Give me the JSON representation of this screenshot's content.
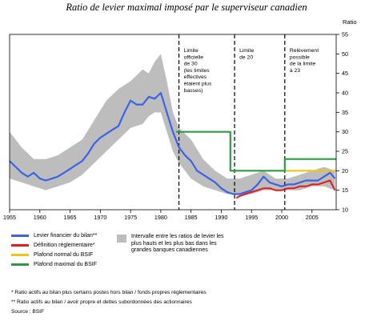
{
  "title": "Ratio de levier maximal imposé par le superviseur canadien",
  "chart_data": {
    "type": "line",
    "ylabel": "Ratio",
    "xlim": [
      1955,
      2009
    ],
    "ylim": [
      10,
      55
    ],
    "x_ticks": [
      "1955",
      "1960",
      "1965",
      "1970",
      "1975",
      "1980",
      "1985",
      "1990",
      "1995",
      "2000",
      "2005"
    ],
    "y_ticks": [
      "10",
      "15",
      "20",
      "25",
      "30",
      "35",
      "40",
      "45",
      "50",
      "55"
    ],
    "grid": false,
    "legend_position": "bottom",
    "series": [
      {
        "name": "Levier financier du bilan**",
        "color": "#3c63e6",
        "points": [
          [
            1955,
            22.5
          ],
          [
            1956,
            21
          ],
          [
            1957,
            19.5
          ],
          [
            1958,
            18.5
          ],
          [
            1959,
            19.5
          ],
          [
            1960,
            18
          ],
          [
            1961,
            17.5
          ],
          [
            1962,
            18
          ],
          [
            1963,
            18.5
          ],
          [
            1964,
            19.5
          ],
          [
            1965,
            20.5
          ],
          [
            1966,
            21.5
          ],
          [
            1967,
            22.5
          ],
          [
            1968,
            24.5
          ],
          [
            1969,
            27
          ],
          [
            1970,
            28.5
          ],
          [
            1971,
            29.5
          ],
          [
            1972,
            30.5
          ],
          [
            1973,
            31.5
          ],
          [
            1974,
            35
          ],
          [
            1975,
            38
          ],
          [
            1976,
            37
          ],
          [
            1977,
            37
          ],
          [
            1978,
            39
          ],
          [
            1979,
            38.5
          ],
          [
            1980,
            40
          ],
          [
            1981,
            35
          ],
          [
            1982,
            30
          ],
          [
            1983,
            26
          ],
          [
            1984,
            24
          ],
          [
            1985,
            22.5
          ],
          [
            1986,
            20
          ],
          [
            1987,
            19
          ],
          [
            1988,
            18
          ],
          [
            1989,
            17
          ],
          [
            1990,
            15.5
          ],
          [
            1991,
            14.5
          ],
          [
            1992,
            14
          ],
          [
            1993,
            14
          ],
          [
            1994,
            14.5
          ],
          [
            1995,
            15
          ],
          [
            1996,
            16.5
          ],
          [
            1997,
            18.5
          ],
          [
            1998,
            17
          ],
          [
            1999,
            16.5
          ],
          [
            2000,
            16
          ],
          [
            2001,
            16.5
          ],
          [
            2002,
            16.5
          ],
          [
            2003,
            17
          ],
          [
            2004,
            17.5
          ],
          [
            2005,
            17.5
          ],
          [
            2006,
            17.5
          ],
          [
            2007,
            18.5
          ],
          [
            2008,
            19.5
          ],
          [
            2008.8,
            18
          ]
        ]
      },
      {
        "name": "Définition réglementaire*",
        "color": "#e01c1c",
        "points": [
          [
            1992.5,
            13
          ],
          [
            1993,
            13.5
          ],
          [
            1994,
            14
          ],
          [
            1995,
            14.5
          ],
          [
            1996,
            15
          ],
          [
            1997,
            15.5
          ],
          [
            1998,
            15.5
          ],
          [
            1999,
            15
          ],
          [
            2000,
            15
          ],
          [
            2001,
            15.5
          ],
          [
            2002,
            15.5
          ],
          [
            2003,
            16
          ],
          [
            2004,
            16
          ],
          [
            2005,
            16.5
          ],
          [
            2006,
            16.5
          ],
          [
            2007,
            17
          ],
          [
            2008,
            17.5
          ],
          [
            2008.8,
            15
          ]
        ]
      },
      {
        "name": "Plafond normal du BSIF",
        "color": "#f2c21c",
        "points": [
          [
            2000.5,
            20
          ],
          [
            2009,
            20
          ]
        ]
      },
      {
        "name": "Plafond maximal du BSIF",
        "color": "#2e9a44",
        "points": [
          [
            1982.5,
            30
          ],
          [
            1991.5,
            30
          ],
          [
            1991.5,
            20
          ],
          [
            2000.5,
            20
          ],
          [
            2000.5,
            23
          ],
          [
            2009,
            23
          ]
        ]
      }
    ],
    "band": {
      "label": "Intervalle entre les ratios de levier les plus hauts et les plus bas dans les grandes banques canadiennes",
      "color": "#bdbdbd",
      "x": [
        1955,
        1957,
        1959,
        1961,
        1963,
        1965,
        1967,
        1969,
        1971,
        1973,
        1975,
        1977,
        1978,
        1979,
        1980,
        1981,
        1982,
        1983,
        1985,
        1987,
        1989,
        1991,
        1993,
        1995,
        1997,
        1999,
        2001,
        2003,
        2005,
        2007,
        2008.8
      ],
      "upper": [
        30,
        26,
        23,
        23,
        24,
        26,
        28,
        33,
        38,
        41,
        43,
        46,
        45,
        48,
        50,
        43,
        35,
        31,
        28,
        23,
        20,
        18,
        18,
        19,
        20,
        18,
        18,
        19,
        20,
        21,
        20
      ],
      "lower": [
        18,
        17,
        16,
        15,
        16,
        17,
        19,
        22,
        25,
        28,
        31,
        32,
        34,
        35,
        35,
        30,
        25,
        22,
        18,
        16,
        15,
        14,
        14,
        14,
        15,
        15,
        15,
        15,
        16,
        16,
        15
      ]
    },
    "vertical_lines": [
      1983,
      1992.2,
      2000.5
    ],
    "annotations": [
      {
        "x": 1983.8,
        "lines": [
          "Limite",
          "officielle",
          "de 30",
          "(les limites",
          "effectives",
          "étaient plus",
          "basses)"
        ]
      },
      {
        "x": 1993.0,
        "lines": [
          "Limite",
          "de 20"
        ]
      },
      {
        "x": 2001.3,
        "lines": [
          "Relèvement",
          "possible",
          "de la limite",
          "à 23"
        ]
      }
    ]
  },
  "legend_items": [
    {
      "label": "Levier financier du bilan**",
      "color": "#3c63e6"
    },
    {
      "label": "Définition réglementaire*",
      "color": "#e01c1c"
    },
    {
      "label": "Plafond normal du BSIF",
      "color": "#f2c21c"
    },
    {
      "label": "Plafond maximal du BSIF",
      "color": "#2e9a44"
    }
  ],
  "band_legend_label": "Intervalle entre les ratios de levier les plus hauts et les plus bas dans les grandes banques canadiennes",
  "notes": [
    "* Ratio actifs au bilan plus certains postes hors bilan / fonds propres réglementaires",
    "** Ratio actifs au bilan / avoir propre et dettes subordonnées des actionnaires",
    "Source : BSIF"
  ]
}
